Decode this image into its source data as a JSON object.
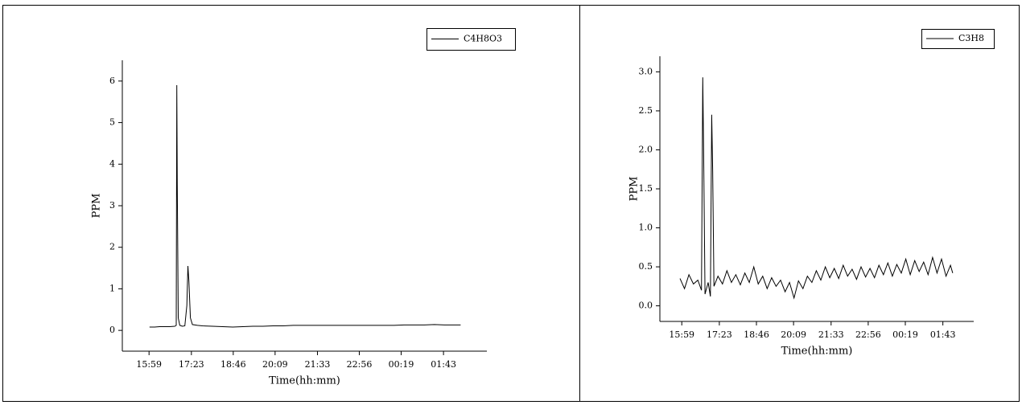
{
  "chart_data": [
    {
      "type": "line",
      "x_label": "Time(hh:mm)",
      "y_label": "PPM",
      "x": [
        "16:00",
        "16:10",
        "16:20",
        "16:30",
        "16:40",
        "16:50",
        "16:53",
        "16:54",
        "16:55",
        "16:57",
        "17:00",
        "17:05",
        "17:10",
        "17:14",
        "17:16",
        "17:18",
        "17:21",
        "17:25",
        "17:35",
        "17:45",
        "18:05",
        "18:25",
        "18:45",
        "19:05",
        "19:25",
        "19:45",
        "20:05",
        "20:25",
        "20:45",
        "21:05",
        "21:25",
        "21:45",
        "22:05",
        "22:25",
        "22:45",
        "23:05",
        "23:25",
        "23:45",
        "00:05",
        "00:25",
        "00:45",
        "01:05",
        "01:25",
        "01:45",
        "02:05",
        "02:17"
      ],
      "series": [
        {
          "name": "C4H8O3",
          "color": "#000000",
          "values": [
            0.08,
            0.08,
            0.09,
            0.09,
            0.09,
            0.1,
            0.12,
            5.9,
            3.5,
            0.3,
            0.12,
            0.1,
            0.11,
            0.6,
            1.55,
            1.2,
            0.3,
            0.14,
            0.12,
            0.11,
            0.1,
            0.09,
            0.08,
            0.09,
            0.1,
            0.1,
            0.11,
            0.11,
            0.12,
            0.12,
            0.12,
            0.12,
            0.12,
            0.12,
            0.12,
            0.12,
            0.12,
            0.12,
            0.12,
            0.13,
            0.13,
            0.13,
            0.14,
            0.13,
            0.13,
            0.13
          ]
        }
      ],
      "xlim": [
        "15:06",
        "03:09"
      ],
      "xticks": [
        "15:59",
        "17:23",
        "18:46",
        "20:09",
        "21:33",
        "22:56",
        "00:19",
        "01:43"
      ],
      "ylim": [
        -0.5,
        6.5
      ],
      "yticks": [
        0,
        1,
        2,
        3,
        4,
        5,
        6
      ],
      "legend": "top-right"
    },
    {
      "type": "line",
      "x_label": "Time(hh:mm)",
      "y_label": "PPM",
      "x": [
        "15:55",
        "16:05",
        "16:15",
        "16:25",
        "16:35",
        "16:43",
        "16:46",
        "16:48",
        "16:51",
        "16:58",
        "17:03",
        "17:06",
        "17:08",
        "17:11",
        "17:20",
        "17:30",
        "17:40",
        "17:50",
        "18:00",
        "18:10",
        "18:20",
        "18:30",
        "18:40",
        "18:50",
        "19:00",
        "19:10",
        "19:20",
        "19:30",
        "19:40",
        "19:50",
        "20:00",
        "20:10",
        "20:20",
        "20:30",
        "20:40",
        "20:50",
        "21:00",
        "21:10",
        "21:20",
        "21:30",
        "21:40",
        "21:50",
        "22:00",
        "22:10",
        "22:20",
        "22:30",
        "22:40",
        "22:50",
        "23:00",
        "23:10",
        "23:20",
        "23:30",
        "23:40",
        "23:50",
        "00:00",
        "00:10",
        "00:20",
        "00:30",
        "00:40",
        "00:50",
        "01:00",
        "01:10",
        "01:20",
        "01:30",
        "01:40",
        "01:50",
        "02:00",
        "02:05"
      ],
      "series": [
        {
          "name": "C3H8",
          "color": "#000000",
          "values": [
            0.35,
            0.22,
            0.4,
            0.28,
            0.33,
            0.2,
            2.93,
            1.95,
            0.15,
            0.3,
            0.12,
            2.45,
            1.75,
            0.25,
            0.38,
            0.28,
            0.45,
            0.3,
            0.4,
            0.27,
            0.42,
            0.3,
            0.5,
            0.28,
            0.38,
            0.22,
            0.36,
            0.25,
            0.33,
            0.18,
            0.3,
            0.1,
            0.32,
            0.22,
            0.38,
            0.3,
            0.45,
            0.33,
            0.5,
            0.36,
            0.48,
            0.35,
            0.52,
            0.38,
            0.47,
            0.34,
            0.5,
            0.37,
            0.48,
            0.36,
            0.52,
            0.4,
            0.55,
            0.38,
            0.53,
            0.42,
            0.6,
            0.4,
            0.58,
            0.44,
            0.56,
            0.4,
            0.62,
            0.42,
            0.6,
            0.38,
            0.52,
            0.42
          ]
        }
      ],
      "xlim": [
        "15:10",
        "02:52"
      ],
      "xticks": [
        "15:59",
        "17:23",
        "18:46",
        "20:09",
        "21:33",
        "22:56",
        "00:19",
        "01:43"
      ],
      "ylim": [
        -0.2,
        3.2
      ],
      "yticks": [
        {
          "value": 0,
          "label": "0.0"
        },
        0.5,
        {
          "value": 1,
          "label": "1.0"
        },
        1.5,
        {
          "value": 2,
          "label": "2.0"
        },
        2.5,
        {
          "value": 3,
          "label": "3.0"
        }
      ],
      "legend": "top-right"
    }
  ]
}
